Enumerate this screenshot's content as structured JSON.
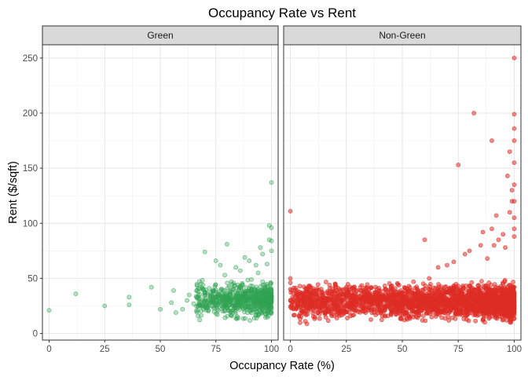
{
  "chart_data": {
    "type": "scatter",
    "title": "Occupancy Rate vs Rent",
    "xlabel": "Occupancy Rate (%)",
    "ylabel": "Rent ($/sqft)",
    "xlim": [
      -3,
      103
    ],
    "ylim": [
      -6,
      262
    ],
    "xticks": [
      0,
      25,
      50,
      75,
      100
    ],
    "yticks": [
      0,
      50,
      100,
      150,
      200,
      250
    ],
    "grid": true,
    "legend": "none",
    "panels": [
      {
        "name": "Green",
        "color": "#31a354",
        "fill_opacity": 0.35,
        "points": [
          [
            0,
            21
          ],
          [
            12,
            36
          ],
          [
            25,
            25
          ],
          [
            36,
            33
          ],
          [
            36,
            26
          ],
          [
            46,
            42
          ],
          [
            50,
            22
          ],
          [
            55,
            28
          ],
          [
            56,
            39
          ],
          [
            57,
            19
          ],
          [
            60,
            22
          ],
          [
            62,
            30
          ],
          [
            63,
            35
          ],
          [
            65,
            27
          ],
          [
            67,
            33
          ],
          [
            69,
            25
          ],
          [
            70,
            74
          ],
          [
            72,
            41
          ],
          [
            73,
            29
          ],
          [
            75,
            66
          ],
          [
            76,
            36
          ],
          [
            77,
            62
          ],
          [
            78,
            33
          ],
          [
            79,
            53
          ],
          [
            80,
            81
          ],
          [
            81,
            38
          ],
          [
            82,
            47
          ],
          [
            83,
            30
          ],
          [
            84,
            60
          ],
          [
            85,
            28
          ],
          [
            86,
            57
          ],
          [
            87,
            44
          ],
          [
            88,
            69
          ],
          [
            89,
            33
          ],
          [
            90,
            66
          ],
          [
            91,
            49
          ],
          [
            92,
            36
          ],
          [
            93,
            62
          ],
          [
            94,
            55
          ],
          [
            95,
            78
          ],
          [
            96,
            72
          ],
          [
            97,
            40
          ],
          [
            98,
            63
          ],
          [
            99,
            85
          ],
          [
            99,
            98
          ],
          [
            100,
            137
          ],
          [
            100,
            96
          ],
          [
            100,
            84
          ],
          [
            100,
            75
          ]
        ],
        "cluster": {
          "x": [
            66,
            100
          ],
          "y": [
            10,
            52
          ],
          "n": 700,
          "seed": 7
        }
      },
      {
        "name": "Non-Green",
        "color": "#de2d26",
        "fill_opacity": 0.55,
        "points": [
          [
            0,
            111
          ],
          [
            0,
            50
          ],
          [
            0,
            46
          ],
          [
            0,
            40
          ],
          [
            12,
            39
          ],
          [
            20,
            45
          ],
          [
            25,
            42
          ],
          [
            35,
            40
          ],
          [
            45,
            43
          ],
          [
            50,
            37
          ],
          [
            55,
            47
          ],
          [
            57,
            36
          ],
          [
            60,
            85
          ],
          [
            62,
            50
          ],
          [
            66,
            60
          ],
          [
            70,
            62
          ],
          [
            73,
            65
          ],
          [
            75,
            153
          ],
          [
            78,
            72
          ],
          [
            80,
            75
          ],
          [
            82,
            200
          ],
          [
            85,
            80
          ],
          [
            86,
            92
          ],
          [
            88,
            68
          ],
          [
            90,
            175
          ],
          [
            90,
            95
          ],
          [
            91,
            80
          ],
          [
            92,
            107
          ],
          [
            93,
            85
          ],
          [
            95,
            90
          ],
          [
            96,
            78
          ],
          [
            97,
            143
          ],
          [
            98,
            165
          ],
          [
            98,
            110
          ],
          [
            99,
            130
          ],
          [
            99,
            120
          ],
          [
            100,
            250
          ],
          [
            100,
            199
          ],
          [
            100,
            186
          ],
          [
            100,
            175
          ],
          [
            100,
            155
          ],
          [
            100,
            135
          ],
          [
            100,
            120
          ],
          [
            100,
            105
          ],
          [
            100,
            95
          ],
          [
            100,
            88
          ]
        ],
        "cluster": {
          "x": [
            0,
            100
          ],
          "y": [
            8,
            50
          ],
          "n": 2600,
          "seed": 13
        }
      }
    ]
  }
}
